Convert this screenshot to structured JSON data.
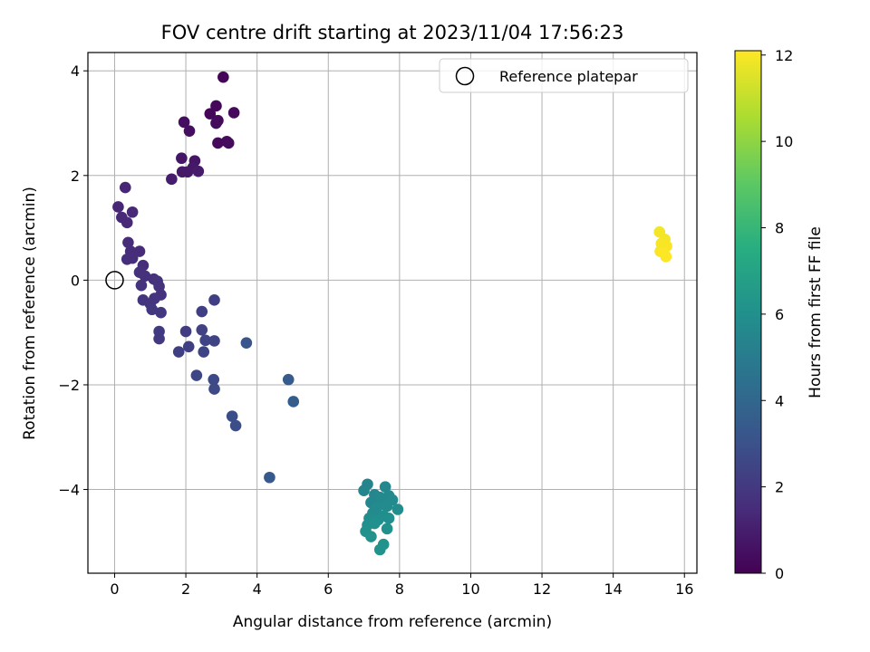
{
  "chart_data": {
    "type": "scatter",
    "title": "FOV centre drift starting at 2023/11/04 17:56:23",
    "xlabel": "Angular distance from reference (arcmin)",
    "ylabel": "Rotation from reference (arcmin)",
    "xlim": [
      -0.75,
      16.35
    ],
    "ylim": [
      -5.6,
      4.35
    ],
    "xticks": [
      0,
      2,
      4,
      6,
      8,
      10,
      12,
      14,
      16
    ],
    "xtick_labels": [
      "0",
      "2",
      "4",
      "6",
      "8",
      "10",
      "12",
      "14",
      "16"
    ],
    "yticks": [
      4,
      2,
      0,
      -2,
      -4
    ],
    "ytick_labels": [
      "4",
      "2",
      "0",
      "−2",
      "−4"
    ],
    "grid": true,
    "colormap": "viridis",
    "colorbar": {
      "label": "Hours from first FF file",
      "range": [
        0,
        12.1
      ],
      "ticks": [
        0,
        2,
        4,
        6,
        8,
        10,
        12
      ],
      "tick_labels": [
        "0",
        "2",
        "4",
        "6",
        "8",
        "10",
        "12"
      ]
    },
    "legend": {
      "placement": "top-right",
      "label": "Reference platepar"
    },
    "reference_point": {
      "x": 0,
      "y": 0
    },
    "points": [
      {
        "x": 3.05,
        "y": 3.88,
        "t": 0.1
      },
      {
        "x": 2.85,
        "y": 3.33,
        "t": 0.2
      },
      {
        "x": 3.35,
        "y": 3.2,
        "t": 0.3
      },
      {
        "x": 2.68,
        "y": 3.18,
        "t": 0.2
      },
      {
        "x": 2.9,
        "y": 3.05,
        "t": 0.3
      },
      {
        "x": 2.85,
        "y": 3.0,
        "t": 0.4
      },
      {
        "x": 1.95,
        "y": 3.02,
        "t": 0.5
      },
      {
        "x": 2.1,
        "y": 2.85,
        "t": 0.5
      },
      {
        "x": 3.15,
        "y": 2.65,
        "t": 0.4
      },
      {
        "x": 2.9,
        "y": 2.62,
        "t": 0.3
      },
      {
        "x": 3.2,
        "y": 2.62,
        "t": 0.4
      },
      {
        "x": 1.88,
        "y": 2.33,
        "t": 0.7
      },
      {
        "x": 2.25,
        "y": 2.28,
        "t": 0.7
      },
      {
        "x": 2.2,
        "y": 2.15,
        "t": 0.8
      },
      {
        "x": 1.9,
        "y": 2.07,
        "t": 0.8
      },
      {
        "x": 2.05,
        "y": 2.07,
        "t": 0.8
      },
      {
        "x": 2.35,
        "y": 2.08,
        "t": 0.9
      },
      {
        "x": 1.6,
        "y": 1.93,
        "t": 1.0
      },
      {
        "x": 0.3,
        "y": 1.77,
        "t": 1.3
      },
      {
        "x": 0.1,
        "y": 1.4,
        "t": 1.3
      },
      {
        "x": 0.5,
        "y": 1.3,
        "t": 1.4
      },
      {
        "x": 0.2,
        "y": 1.2,
        "t": 1.4
      },
      {
        "x": 0.35,
        "y": 1.1,
        "t": 1.4
      },
      {
        "x": 0.38,
        "y": 0.72,
        "t": 1.5
      },
      {
        "x": 0.45,
        "y": 0.55,
        "t": 1.5
      },
      {
        "x": 0.7,
        "y": 0.55,
        "t": 1.5
      },
      {
        "x": 0.35,
        "y": 0.4,
        "t": 1.6
      },
      {
        "x": 0.5,
        "y": 0.42,
        "t": 1.6
      },
      {
        "x": 0.8,
        "y": 0.28,
        "t": 1.6
      },
      {
        "x": 0.7,
        "y": 0.15,
        "t": 1.7
      },
      {
        "x": 0.85,
        "y": 0.08,
        "t": 1.7
      },
      {
        "x": 1.1,
        "y": 0.02,
        "t": 1.7
      },
      {
        "x": 1.2,
        "y": -0.02,
        "t": 1.8
      },
      {
        "x": 0.75,
        "y": -0.1,
        "t": 1.8
      },
      {
        "x": 1.25,
        "y": -0.12,
        "t": 1.8
      },
      {
        "x": 1.3,
        "y": -0.28,
        "t": 1.8
      },
      {
        "x": 1.12,
        "y": -0.35,
        "t": 1.9
      },
      {
        "x": 0.8,
        "y": -0.38,
        "t": 1.9
      },
      {
        "x": 1.0,
        "y": -0.45,
        "t": 1.9
      },
      {
        "x": 1.05,
        "y": -0.56,
        "t": 2.0
      },
      {
        "x": 1.3,
        "y": -0.62,
        "t": 2.0
      },
      {
        "x": 2.8,
        "y": -0.38,
        "t": 2.3
      },
      {
        "x": 2.45,
        "y": -0.6,
        "t": 2.3
      },
      {
        "x": 1.25,
        "y": -0.98,
        "t": 2.1
      },
      {
        "x": 1.25,
        "y": -1.12,
        "t": 2.1
      },
      {
        "x": 2.0,
        "y": -0.98,
        "t": 2.2
      },
      {
        "x": 2.45,
        "y": -0.95,
        "t": 2.4
      },
      {
        "x": 2.55,
        "y": -1.15,
        "t": 2.5
      },
      {
        "x": 2.8,
        "y": -1.16,
        "t": 2.5
      },
      {
        "x": 2.08,
        "y": -1.27,
        "t": 2.3
      },
      {
        "x": 1.8,
        "y": -1.37,
        "t": 2.3
      },
      {
        "x": 2.5,
        "y": -1.37,
        "t": 2.5
      },
      {
        "x": 3.7,
        "y": -1.2,
        "t": 3.2
      },
      {
        "x": 2.3,
        "y": -1.82,
        "t": 2.6
      },
      {
        "x": 2.78,
        "y": -1.9,
        "t": 2.7
      },
      {
        "x": 2.8,
        "y": -2.08,
        "t": 2.7
      },
      {
        "x": 4.88,
        "y": -1.9,
        "t": 3.5
      },
      {
        "x": 5.02,
        "y": -2.32,
        "t": 3.6
      },
      {
        "x": 3.3,
        "y": -2.6,
        "t": 2.9
      },
      {
        "x": 3.4,
        "y": -2.78,
        "t": 2.9
      },
      {
        "x": 4.35,
        "y": -3.77,
        "t": 3.4
      },
      {
        "x": 7.1,
        "y": -3.9,
        "t": 5.5
      },
      {
        "x": 7.6,
        "y": -3.95,
        "t": 5.6
      },
      {
        "x": 7.0,
        "y": -4.02,
        "t": 5.5
      },
      {
        "x": 7.3,
        "y": -4.1,
        "t": 5.6
      },
      {
        "x": 7.45,
        "y": -4.15,
        "t": 5.7
      },
      {
        "x": 7.7,
        "y": -4.12,
        "t": 5.7
      },
      {
        "x": 7.8,
        "y": -4.2,
        "t": 5.8
      },
      {
        "x": 7.2,
        "y": -4.25,
        "t": 5.6
      },
      {
        "x": 7.5,
        "y": -4.28,
        "t": 5.7
      },
      {
        "x": 7.35,
        "y": -4.35,
        "t": 5.8
      },
      {
        "x": 7.65,
        "y": -4.32,
        "t": 5.8
      },
      {
        "x": 7.95,
        "y": -4.38,
        "t": 5.9
      },
      {
        "x": 7.25,
        "y": -4.45,
        "t": 5.8
      },
      {
        "x": 7.55,
        "y": -4.5,
        "t": 5.9
      },
      {
        "x": 7.15,
        "y": -4.55,
        "t": 5.9
      },
      {
        "x": 7.4,
        "y": -4.58,
        "t": 6.0
      },
      {
        "x": 7.7,
        "y": -4.55,
        "t": 6.0
      },
      {
        "x": 7.1,
        "y": -4.68,
        "t": 6.0
      },
      {
        "x": 7.3,
        "y": -4.65,
        "t": 6.1
      },
      {
        "x": 7.05,
        "y": -4.8,
        "t": 6.1
      },
      {
        "x": 7.65,
        "y": -4.75,
        "t": 6.1
      },
      {
        "x": 7.2,
        "y": -4.9,
        "t": 6.2
      },
      {
        "x": 7.55,
        "y": -5.05,
        "t": 6.2
      },
      {
        "x": 7.45,
        "y": -5.15,
        "t": 6.2
      },
      {
        "x": 15.3,
        "y": 0.92,
        "t": 11.9
      },
      {
        "x": 15.45,
        "y": 0.78,
        "t": 11.9
      },
      {
        "x": 15.35,
        "y": 0.7,
        "t": 12.0
      },
      {
        "x": 15.5,
        "y": 0.65,
        "t": 12.0
      },
      {
        "x": 15.32,
        "y": 0.55,
        "t": 12.0
      },
      {
        "x": 15.42,
        "y": 0.52,
        "t": 12.1
      },
      {
        "x": 15.48,
        "y": 0.45,
        "t": 12.1
      }
    ]
  }
}
